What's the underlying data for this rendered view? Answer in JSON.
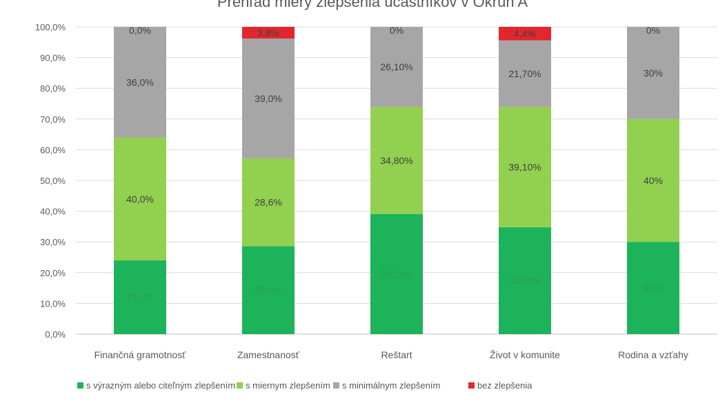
{
  "chart_data": {
    "type": "bar",
    "stacked": true,
    "title": "Prehľad miery zlepšenia účastníkov v Okruh A",
    "categories": [
      "Finančná gramotnosť",
      "Zamestnanosť",
      "Reštart",
      "Život v komunite",
      "Rodina a vzťahy"
    ],
    "ylim": [
      0,
      100
    ],
    "yticks": [
      "0,0%",
      "10,0%",
      "20,0%",
      "30,0%",
      "40,0%",
      "50,0%",
      "60,0%",
      "70,0%",
      "80,0%",
      "90,0%",
      "100,0%"
    ],
    "grid": true,
    "legend_position": "bottom",
    "series": [
      {
        "name": "s výrazným alebo citeľným zlepšením",
        "color": "#1db35a",
        "label_color": "#2e9c54",
        "values": [
          24.0,
          28.6,
          39.1,
          34.8,
          30.0
        ],
        "labels": [
          "24,0%",
          "28,6%",
          "39,10%",
          "34,80%",
          "30%"
        ]
      },
      {
        "name": "s miernym zlepšením",
        "color": "#92d050",
        "label_color": "#404040",
        "values": [
          40.0,
          28.6,
          34.8,
          39.1,
          40.0
        ],
        "labels": [
          "40,0%",
          "28,6%",
          "34,80%",
          "39,10%",
          "40%"
        ]
      },
      {
        "name": "s minimálnym zlepšením",
        "color": "#a6a6a6",
        "label_color": "#404040",
        "values": [
          36.0,
          39.0,
          26.1,
          21.7,
          30.0
        ],
        "labels": [
          "36,0%",
          "39,0%",
          "26,10%",
          "21,70%",
          "30%"
        ]
      },
      {
        "name": "bez zlepšenia",
        "color": "#e3262d",
        "label_color": "#404040",
        "values": [
          0.0,
          3.8,
          0.0,
          4.4,
          0.0
        ],
        "labels": [
          "0,0%",
          "3,8%",
          "0%",
          "4,4%",
          "0%"
        ]
      }
    ]
  }
}
